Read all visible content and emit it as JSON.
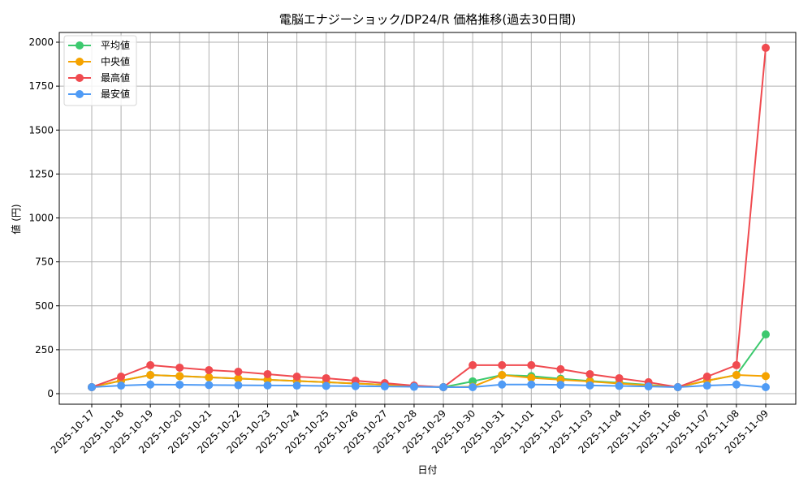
{
  "chart_data": {
    "type": "line",
    "title": "電脳エナジーショック/DP24/R 価格推移(過去30日間)",
    "xlabel": "日付",
    "ylabel": "値 (円)",
    "ylim": [
      -70,
      2060
    ],
    "yticks": [
      0,
      250,
      500,
      750,
      1000,
      1250,
      1500,
      1750,
      2000
    ],
    "grid": true,
    "legend_position": "upper left",
    "categories": [
      "2025-10-17",
      "2025-10-18",
      "2025-10-19",
      "2025-10-20",
      "2025-10-21",
      "2025-10-22",
      "2025-10-23",
      "2025-10-24",
      "2025-10-25",
      "2025-10-26",
      "2025-10-27",
      "2025-10-28",
      "2025-10-29",
      "2025-10-30",
      "2025-10-31",
      "2025-11-01",
      "2025-11-02",
      "2025-11-03",
      "2025-11-04",
      "2025-11-05",
      "2025-11-06",
      "2025-11-07",
      "2025-11-08",
      "2025-11-09"
    ],
    "series": [
      {
        "name": "平均値",
        "color": "#3cc96e",
        "values": [
          37,
          74,
          106,
          100,
          93,
          86,
          79,
          72,
          65,
          58,
          51,
          44,
          37,
          70,
          106,
          100,
          85,
          72,
          62,
          50,
          37,
          74,
          106,
          337
        ]
      },
      {
        "name": "中央値",
        "color": "#f5a300",
        "values": [
          37,
          74,
          106,
          100,
          93,
          86,
          79,
          72,
          65,
          58,
          51,
          44,
          37,
          40,
          106,
          90,
          79,
          69,
          58,
          48,
          37,
          74,
          106,
          100
        ]
      },
      {
        "name": "最高値",
        "color": "#f04b50",
        "values": [
          37,
          97,
          162,
          148,
          134,
          125,
          111,
          97,
          88,
          74,
          60,
          46,
          37,
          162,
          162,
          162,
          139,
          111,
          88,
          65,
          37,
          97,
          162,
          1968
        ]
      },
      {
        "name": "最安値",
        "color": "#4f9bf5",
        "values": [
          37,
          46,
          52,
          51,
          49,
          48,
          47,
          46,
          44,
          43,
          41,
          39,
          37,
          37,
          52,
          52,
          50,
          47,
          44,
          41,
          37,
          46,
          52,
          37
        ]
      }
    ]
  }
}
